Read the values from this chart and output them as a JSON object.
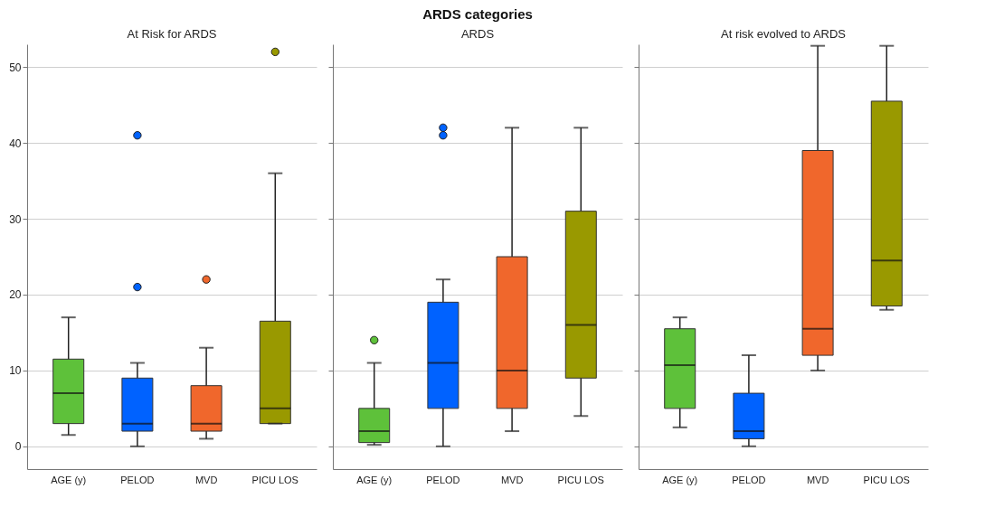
{
  "chart_data": [
    {
      "type": "box",
      "subtitle": "At Risk for ARDS",
      "categories": [
        "AGE (y)",
        "PELOD",
        "MVD",
        "PICU LOS"
      ],
      "colors": [
        "#5ec13a",
        "#0062ff",
        "#f0672c",
        "#999900"
      ],
      "ylim": [
        -3,
        53
      ],
      "yticks": [
        0,
        10,
        20,
        30,
        40,
        50
      ],
      "grid": "y",
      "marker": "circle",
      "boxes": [
        {
          "low": 1.5,
          "q1": 3,
          "median": 7,
          "q3": 11.5,
          "high": 17
        },
        {
          "low": 0,
          "q1": 2,
          "median": 3,
          "q3": 9,
          "high": 11,
          "outliers": [
            21,
            41
          ]
        },
        {
          "low": 1,
          "q1": 2,
          "median": 3,
          "q3": 8,
          "high": 13,
          "outliers": [
            22
          ]
        },
        {
          "low": 3,
          "q1": 3,
          "median": 5,
          "q3": 16.5,
          "high": 36,
          "outliers": [
            52
          ]
        }
      ]
    },
    {
      "type": "box",
      "title": "ARDS categories",
      "subtitle": "ARDS",
      "categories": [
        "AGE (y)",
        "PELOD",
        "MVD",
        "PICU LOS"
      ],
      "colors": [
        "#5ec13a",
        "#0062ff",
        "#f0672c",
        "#999900"
      ],
      "ylim": [
        -3,
        53
      ],
      "yticks": [
        0,
        10,
        20,
        30,
        40,
        50
      ],
      "grid": "y",
      "marker": "circle",
      "tick_labels": "x",
      "boxes": [
        {
          "low": 0.2,
          "q1": 0.5,
          "median": 2,
          "q3": 5,
          "high": 11,
          "outliers": [
            14
          ]
        },
        {
          "low": 0,
          "q1": 5,
          "median": 11,
          "q3": 19,
          "high": 22,
          "outliers": [
            41,
            42
          ]
        },
        {
          "low": 2,
          "q1": 5,
          "median": 10,
          "q3": 25,
          "high": 42
        },
        {
          "low": 4,
          "q1": 9,
          "median": 16,
          "q3": 31,
          "high": 42
        }
      ]
    },
    {
      "type": "box",
      "subtitle": "At risk evolved to ARDS",
      "categories": [
        "AGE (y)",
        "PELOD",
        "MVD",
        "PICU LOS"
      ],
      "colors": [
        "#5ec13a",
        "#0062ff",
        "#f0672c",
        "#999900"
      ],
      "ylim": [
        -3,
        53
      ],
      "yticks": [
        0,
        10,
        20,
        30,
        40,
        50
      ],
      "grid": "y",
      "tick_labels": "x",
      "boxes": [
        {
          "low": 2.5,
          "q1": 5,
          "median": 10.7,
          "q3": 15.5,
          "high": 17
        },
        {
          "low": 0,
          "q1": 1,
          "median": 2,
          "q3": 7,
          "high": 12
        },
        {
          "low": 10,
          "q1": 12,
          "median": 15.5,
          "q3": 39,
          "high": 52.8
        },
        {
          "low": 18,
          "q1": 18.5,
          "median": 24.5,
          "q3": 45.5,
          "high": 52.8
        }
      ]
    }
  ]
}
